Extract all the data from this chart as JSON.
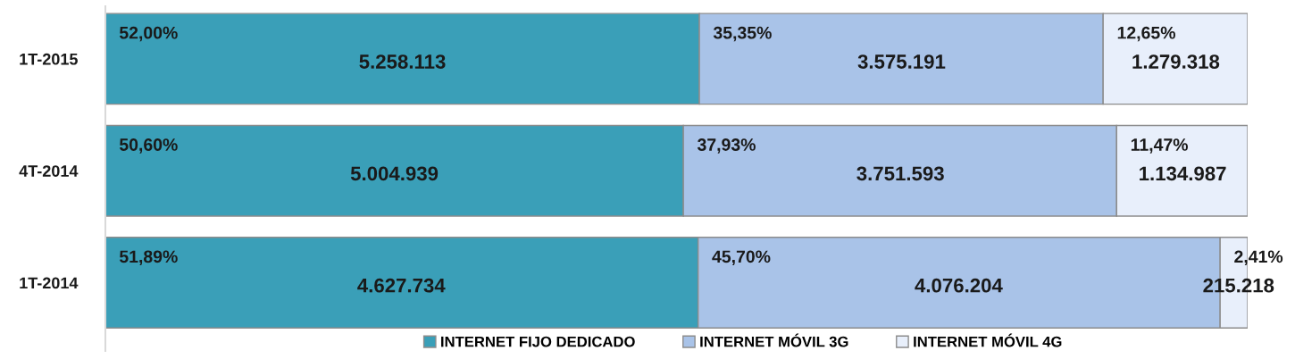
{
  "chart_data": {
    "type": "bar",
    "orientation": "horizontal",
    "stacked": true,
    "categories": [
      "1T-2015",
      "4T-2014",
      "1T-2014"
    ],
    "xlim": [
      0,
      100
    ],
    "tick_labels": "y",
    "legend": "bottom",
    "series": [
      {
        "name": "INTERNET FIJO DEDICADO",
        "color": "#3a9fb8",
        "values": [
          52.0,
          50.6,
          51.89
        ],
        "value_labels": [
          "52,00%",
          "50,60%",
          "51,89%"
        ]
      },
      {
        "name": "INTERNET MÓVIL 3G",
        "color": "#a9c3e8",
        "values": [
          35.35,
          37.93,
          45.7
        ],
        "value_labels": [
          "35,35%",
          "37,93%",
          "45,70%"
        ]
      },
      {
        "name": "INTERNET MÓVIL 4G",
        "color": "#e8effb",
        "values": [
          12.65,
          11.47,
          2.41
        ],
        "value_labels": [
          "12,65%",
          "11,47%",
          "2,41%"
        ]
      }
    ],
    "annotations": [
      {
        "text": "5.258.113",
        "x": 26.0,
        "y": "1T-2015"
      },
      {
        "text": "3.575.191",
        "x": 69.7,
        "y": "1T-2015"
      },
      {
        "text": "1.279.318",
        "x": 93.7,
        "y": "1T-2015"
      },
      {
        "text": "5.004.939",
        "x": 25.3,
        "y": "4T-2014"
      },
      {
        "text": "3.751.593",
        "x": 69.6,
        "y": "4T-2014"
      },
      {
        "text": "1.134.987",
        "x": 94.3,
        "y": "4T-2014"
      },
      {
        "text": "4.627.734",
        "x": 25.9,
        "y": "1T-2014"
      },
      {
        "text": "4.076.204",
        "x": 74.7,
        "y": "1T-2014"
      },
      {
        "text": "215.218",
        "x": 99.2,
        "y": "1T-2014"
      }
    ]
  }
}
